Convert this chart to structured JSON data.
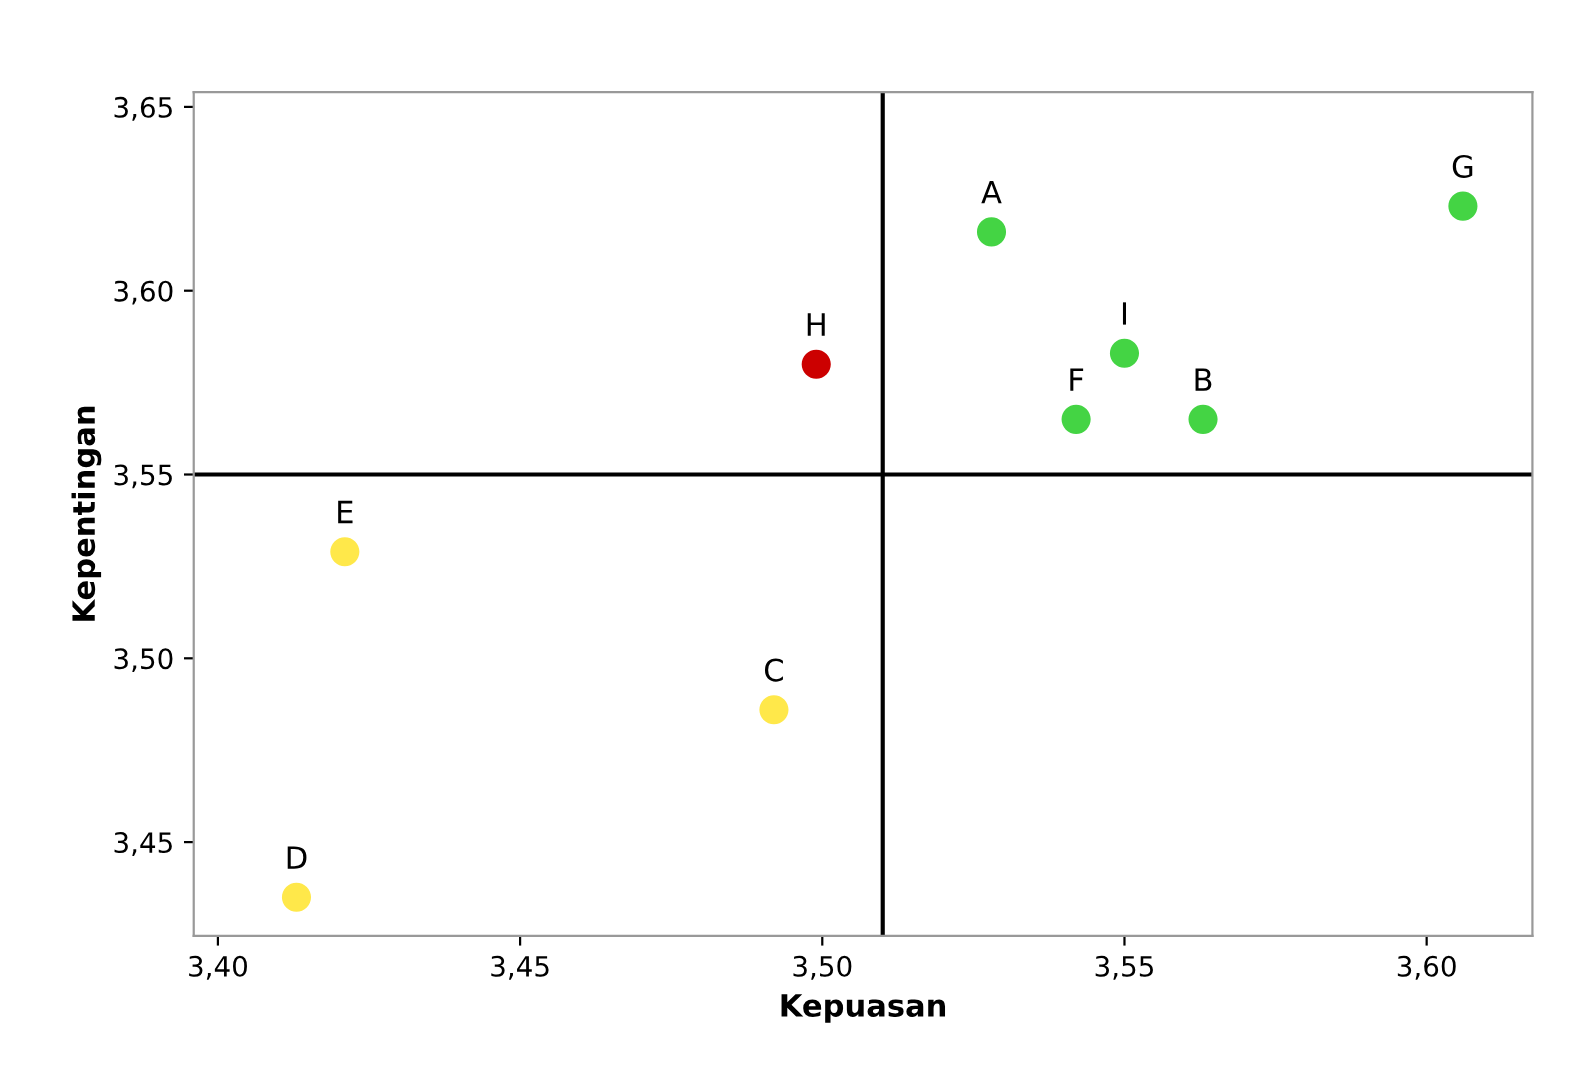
{
  "chart_data": {
    "type": "scatter",
    "xlabel": "Kepuasan",
    "ylabel": "Kepentingan",
    "x": [
      3.528,
      3.563,
      3.492,
      3.413,
      3.421,
      3.542,
      3.606,
      3.499,
      3.55
    ],
    "values": [
      3.616,
      3.565,
      3.486,
      3.435,
      3.529,
      3.565,
      3.623,
      3.58,
      3.583
    ],
    "colors": [
      "#44d444",
      "#44d444",
      "#ffe84a",
      "#ffe84a",
      "#ffe84a",
      "#44d444",
      "#44d444",
      "#cc0000",
      "#44d444"
    ],
    "annotations": [
      {
        "text": "A",
        "x": 3.528,
        "y": 3.616
      },
      {
        "text": "B",
        "x": 3.563,
        "y": 3.565
      },
      {
        "text": "C",
        "x": 3.492,
        "y": 3.486
      },
      {
        "text": "D",
        "x": 3.413,
        "y": 3.435
      },
      {
        "text": "E",
        "x": 3.421,
        "y": 3.529
      },
      {
        "text": "F",
        "x": 3.542,
        "y": 3.565
      },
      {
        "text": "G",
        "x": 3.606,
        "y": 3.623
      },
      {
        "text": "H",
        "x": 3.499,
        "y": 3.58
      },
      {
        "text": "I",
        "x": 3.55,
        "y": 3.583
      }
    ],
    "ref_lines": [
      {
        "axis": "x",
        "value": 3.51,
        "color": "#000000"
      },
      {
        "axis": "y",
        "value": 3.55,
        "color": "#000000"
      }
    ],
    "xlim": [
      3.396,
      3.6175
    ],
    "ylim": [
      3.4245,
      3.654
    ],
    "xticks": [
      {
        "value": 3.4,
        "label": "3,40"
      },
      {
        "value": 3.45,
        "label": "3,45"
      },
      {
        "value": 3.5,
        "label": "3,50"
      },
      {
        "value": 3.55,
        "label": "3,55"
      },
      {
        "value": 3.6,
        "label": "3,60"
      }
    ],
    "yticks": [
      {
        "value": 3.45,
        "label": "3,45"
      },
      {
        "value": 3.5,
        "label": "3,50"
      },
      {
        "value": 3.55,
        "label": "3,55"
      },
      {
        "value": 3.6,
        "label": "3,60"
      },
      {
        "value": 3.65,
        "label": "3,65"
      }
    ],
    "grid": false,
    "legend": false,
    "marker": "circle"
  }
}
